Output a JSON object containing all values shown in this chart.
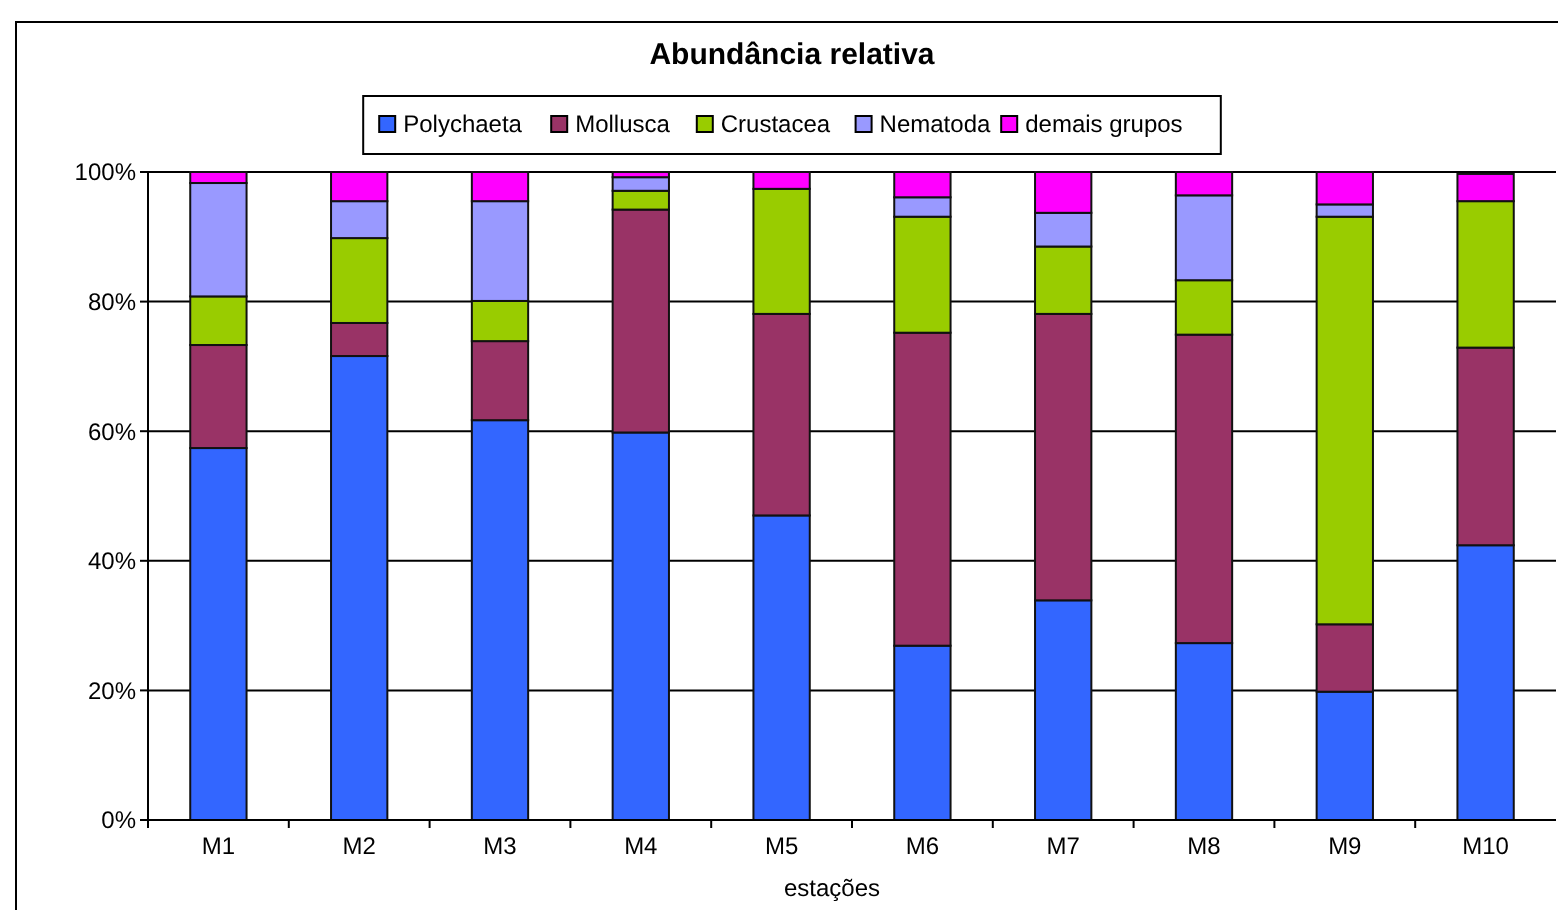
{
  "chart_data": {
    "type": "bar",
    "stacked": true,
    "title": "Abundância relativa",
    "xlabel": "estações",
    "categories": [
      "M1",
      "M2",
      "M3",
      "M4",
      "M5",
      "M6",
      "M7",
      "M8",
      "M9",
      "M10"
    ],
    "series": [
      {
        "name": "Polychaeta",
        "color": "#3366ff",
        "values": [
          57.4,
          71.6,
          61.7,
          59.8,
          47.0,
          26.9,
          33.9,
          27.3,
          19.8,
          42.4
        ]
      },
      {
        "name": "Mollusca",
        "color": "#993366",
        "values": [
          15.9,
          5.1,
          12.2,
          34.4,
          31.1,
          48.3,
          44.2,
          47.6,
          10.4,
          30.5
        ]
      },
      {
        "name": "Crustacea",
        "color": "#99cc00",
        "values": [
          7.5,
          13.1,
          6.2,
          2.9,
          19.3,
          17.9,
          10.4,
          8.4,
          62.9,
          22.6
        ]
      },
      {
        "name": "Nematoda",
        "color": "#9999ff",
        "values": [
          17.5,
          5.7,
          15.4,
          2.1,
          0,
          3.0,
          5.2,
          13.1,
          1.9,
          null
        ]
      },
      {
        "name": "demais grupos",
        "color": "#ff00ff",
        "values": [
          1.7,
          4.5,
          4.5,
          0.8,
          2.6,
          3.9,
          6.3,
          3.6,
          5.0,
          4.2
        ]
      }
    ],
    "ylim": [
      0,
      100
    ],
    "yticks": [
      {
        "value": 0,
        "label": "0%"
      },
      {
        "value": 20,
        "label": "20%"
      },
      {
        "value": 40,
        "label": "40%"
      },
      {
        "value": 60,
        "label": "60%"
      },
      {
        "value": 80,
        "label": "80%"
      },
      {
        "value": 100,
        "label": "100%"
      }
    ],
    "grid": "y",
    "legend": "top"
  }
}
